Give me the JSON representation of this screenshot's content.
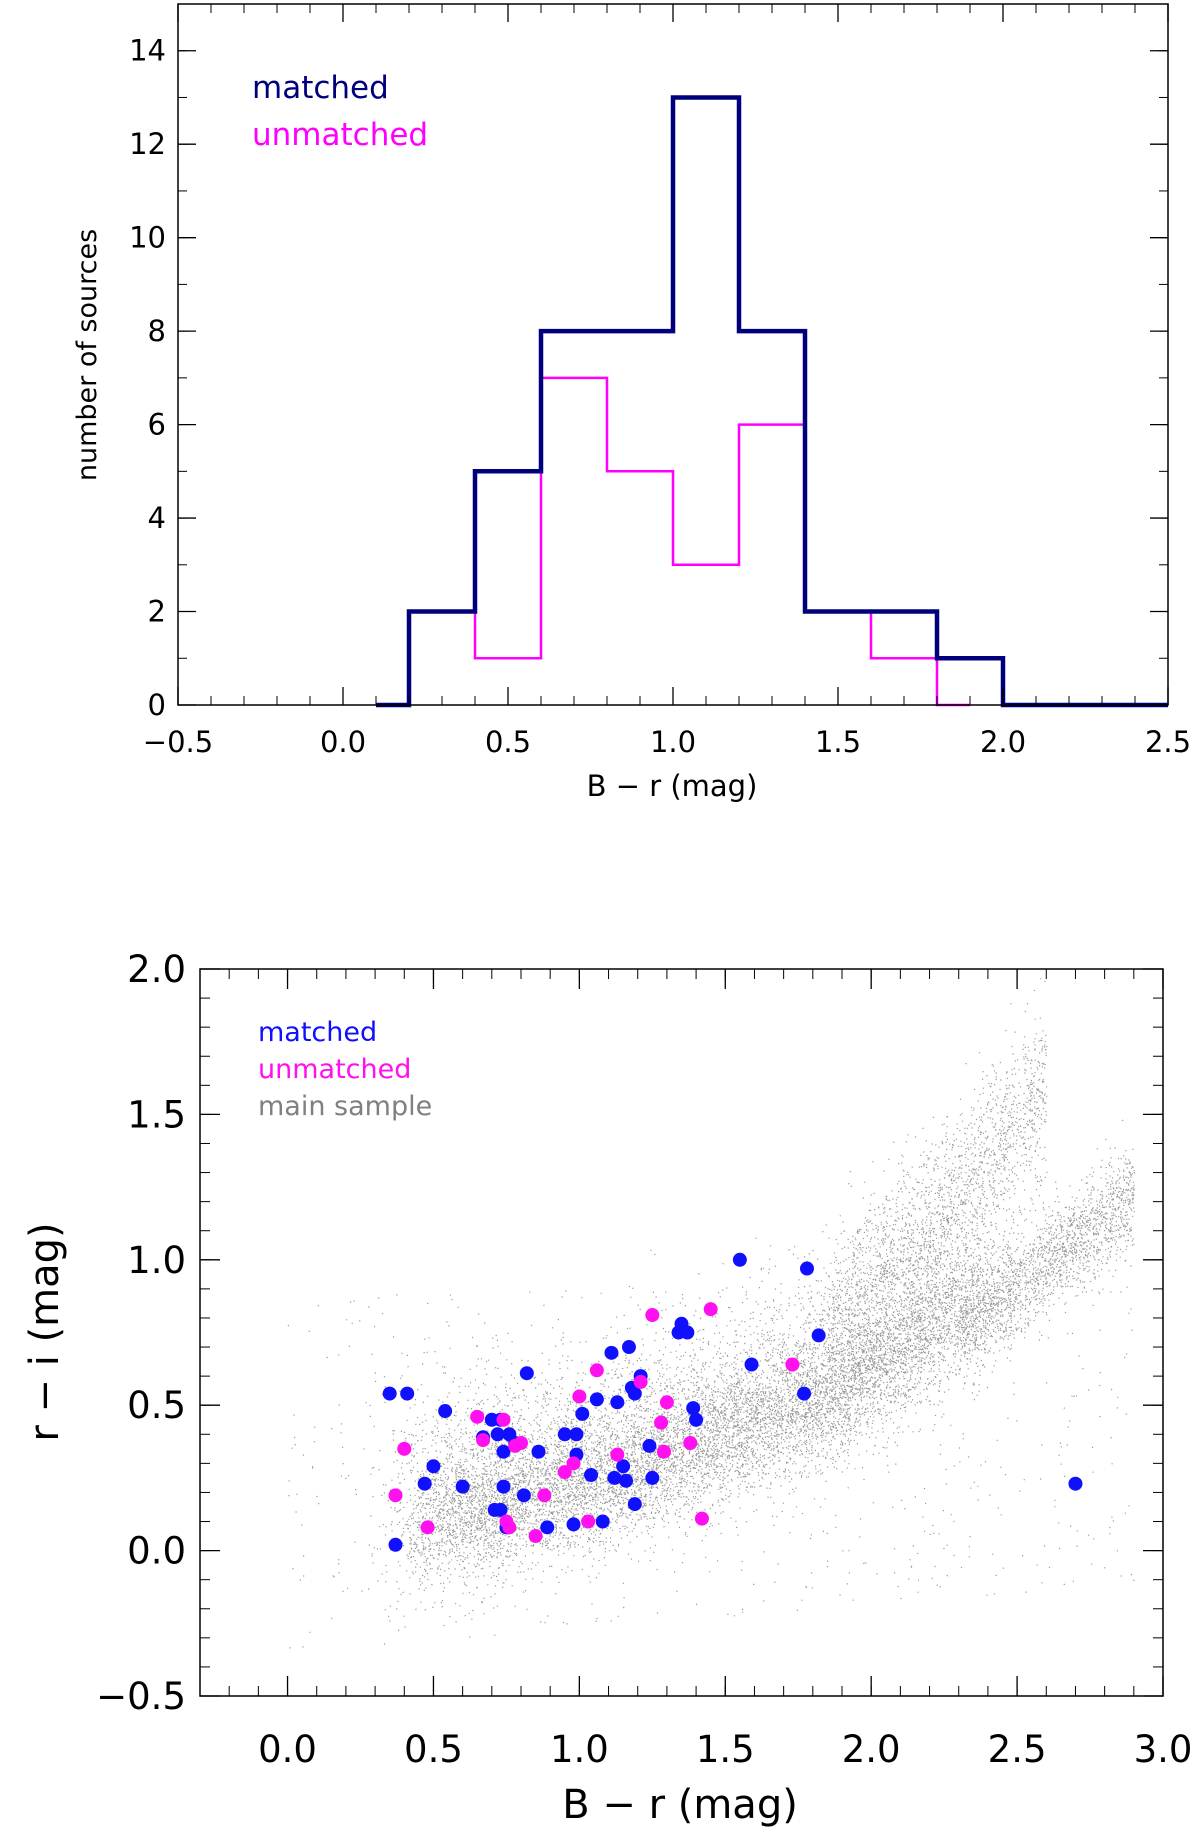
{
  "chart_data": [
    {
      "type": "histogram",
      "xlabel": "B − r (mag)",
      "ylabel": "number of sources",
      "xlim": [
        -0.5,
        2.5
      ],
      "ylim": [
        0,
        15
      ],
      "xticks": [
        -0.5,
        0.0,
        0.5,
        1.0,
        1.5,
        2.0,
        2.5
      ],
      "xtick_labels": [
        "−0.5",
        "0.0",
        "0.5",
        "1.0",
        "1.5",
        "2.0",
        "2.5"
      ],
      "yticks": [
        0,
        2,
        4,
        6,
        8,
        10,
        12,
        14
      ],
      "ytick_labels": [
        "0",
        "2",
        "4",
        "6",
        "8",
        "10",
        "12",
        "14"
      ],
      "legend": [
        {
          "label": "matched",
          "color": "#00007d"
        },
        {
          "label": "unmatched",
          "color": "#ff00ff"
        }
      ],
      "series": [
        {
          "name": "matched",
          "color": "#00007d",
          "steps": [
            [
              0.1,
              0
            ],
            [
              0.2,
              2
            ],
            [
              0.4,
              5
            ],
            [
              0.6,
              8
            ],
            [
              0.8,
              8
            ],
            [
              1.0,
              13
            ],
            [
              1.2,
              8
            ],
            [
              1.4,
              2
            ],
            [
              1.6,
              2
            ],
            [
              1.8,
              1
            ],
            [
              2.0,
              0
            ],
            [
              2.5,
              0
            ]
          ]
        },
        {
          "name": "unmatched",
          "color": "#ff00ff",
          "steps": [
            [
              0.1,
              0
            ],
            [
              0.2,
              2
            ],
            [
              0.4,
              1
            ],
            [
              0.6,
              7
            ],
            [
              0.8,
              5
            ],
            [
              1.0,
              3
            ],
            [
              1.2,
              6
            ],
            [
              1.4,
              2
            ],
            [
              1.6,
              1
            ],
            [
              1.8,
              0
            ],
            [
              1.9,
              0
            ]
          ]
        }
      ]
    },
    {
      "type": "scatter",
      "xlabel": "B − r (mag)",
      "ylabel": "r − i (mag)",
      "xlim": [
        -0.3,
        3.0
      ],
      "ylim": [
        -0.5,
        2.0
      ],
      "xticks": [
        0.0,
        0.5,
        1.0,
        1.5,
        2.0,
        2.5,
        3.0
      ],
      "xtick_labels": [
        "0.0",
        "0.5",
        "1.0",
        "1.5",
        "2.0",
        "2.5",
        "3.0"
      ],
      "yticks": [
        -0.5,
        0.0,
        0.5,
        1.0,
        1.5,
        2.0
      ],
      "ytick_labels": [
        "−0.5",
        "0.0",
        "0.5",
        "1.0",
        "1.5",
        "2.0"
      ],
      "legend": [
        {
          "label": "matched",
          "color": "#1010ff"
        },
        {
          "label": "unmatched",
          "color": "#ff10ee"
        },
        {
          "label": "main sample",
          "color": "#808080"
        }
      ],
      "main_sample_color": "#8a8a8a",
      "series": [
        {
          "name": "matched",
          "color": "#1010ff",
          "points": [
            [
              0.35,
              0.54
            ],
            [
              0.41,
              0.54
            ],
            [
              0.37,
              0.02
            ],
            [
              0.47,
              0.23
            ],
            [
              0.5,
              0.29
            ],
            [
              0.54,
              0.48
            ],
            [
              0.6,
              0.22
            ],
            [
              0.67,
              0.39
            ],
            [
              0.7,
              0.45
            ],
            [
              0.72,
              0.4
            ],
            [
              0.73,
              0.45
            ],
            [
              0.74,
              0.34
            ],
            [
              0.74,
              0.22
            ],
            [
              0.76,
              0.4
            ],
            [
              0.78,
              0.37
            ],
            [
              0.71,
              0.14
            ],
            [
              0.73,
              0.14
            ],
            [
              0.75,
              0.08
            ],
            [
              0.82,
              0.61
            ],
            [
              0.81,
              0.19
            ],
            [
              0.86,
              0.34
            ],
            [
              0.89,
              0.08
            ],
            [
              0.95,
              0.4
            ],
            [
              0.98,
              0.09
            ],
            [
              0.99,
              0.33
            ],
            [
              0.99,
              0.4
            ],
            [
              1.01,
              0.47
            ],
            [
              1.04,
              0.26
            ],
            [
              1.06,
              0.52
            ],
            [
              1.08,
              0.1
            ],
            [
              1.11,
              0.68
            ],
            [
              1.12,
              0.25
            ],
            [
              1.13,
              0.51
            ],
            [
              1.15,
              0.29
            ],
            [
              1.16,
              0.24
            ],
            [
              1.17,
              0.7
            ],
            [
              1.18,
              0.56
            ],
            [
              1.19,
              0.54
            ],
            [
              1.19,
              0.16
            ],
            [
              1.21,
              0.6
            ],
            [
              1.24,
              0.36
            ],
            [
              1.25,
              0.25
            ],
            [
              1.34,
              0.75
            ],
            [
              1.35,
              0.78
            ],
            [
              1.37,
              0.75
            ],
            [
              1.39,
              0.49
            ],
            [
              1.4,
              0.45
            ],
            [
              1.55,
              1.0
            ],
            [
              1.59,
              0.64
            ],
            [
              1.77,
              0.54
            ],
            [
              1.78,
              0.97
            ],
            [
              1.82,
              0.74
            ],
            [
              2.7,
              0.23
            ]
          ]
        },
        {
          "name": "unmatched",
          "color": "#ff10ee",
          "points": [
            [
              0.37,
              0.19
            ],
            [
              0.4,
              0.35
            ],
            [
              0.48,
              0.08
            ],
            [
              0.65,
              0.46
            ],
            [
              0.67,
              0.38
            ],
            [
              0.74,
              0.45
            ],
            [
              0.75,
              0.1
            ],
            [
              0.76,
              0.08
            ],
            [
              0.78,
              0.36
            ],
            [
              0.8,
              0.37
            ],
            [
              0.85,
              0.05
            ],
            [
              0.88,
              0.19
            ],
            [
              0.95,
              0.27
            ],
            [
              0.98,
              0.3
            ],
            [
              1.0,
              0.53
            ],
            [
              1.03,
              0.1
            ],
            [
              1.06,
              0.62
            ],
            [
              1.13,
              0.33
            ],
            [
              1.21,
              0.58
            ],
            [
              1.25,
              0.81
            ],
            [
              1.28,
              0.44
            ],
            [
              1.29,
              0.34
            ],
            [
              1.3,
              0.51
            ],
            [
              1.38,
              0.37
            ],
            [
              1.42,
              0.11
            ],
            [
              1.45,
              0.83
            ],
            [
              1.73,
              0.64
            ]
          ]
        }
      ]
    }
  ]
}
